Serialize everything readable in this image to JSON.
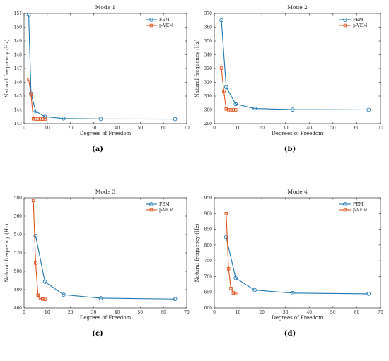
{
  "colors": {
    "fem": "#1f77b4",
    "pvem": "#e0541e"
  },
  "chart_data": [
    {
      "type": "line",
      "title": "Mode 1",
      "xlabel": "Degrees of Freedom",
      "ylabel": "Natural frequency (Hz)",
      "caption": "(a)",
      "xlim": [
        0,
        70
      ],
      "xticks": [
        0,
        10,
        20,
        30,
        40,
        50,
        60,
        70
      ],
      "ylim": [
        143,
        151
      ],
      "yticks": [
        143,
        144,
        145,
        146,
        147,
        148,
        149,
        150,
        151
      ],
      "legend": "top-right",
      "series": [
        {
          "name": "FEM",
          "marker": "circle",
          "x": [
            2,
            3,
            5,
            9,
            17,
            33,
            65
          ],
          "y": [
            150.9,
            145.2,
            143.9,
            143.5,
            143.37,
            143.34,
            143.33
          ]
        },
        {
          "name": "p-VEM",
          "marker": "square",
          "x": [
            2,
            3,
            4,
            5,
            6,
            7,
            8,
            9
          ],
          "y": [
            146.2,
            145.1,
            143.35,
            143.33,
            143.33,
            143.33,
            143.33,
            143.33
          ]
        }
      ]
    },
    {
      "type": "line",
      "title": "Mode 2",
      "xlabel": "Degrees of Freedom",
      "ylabel": "Natural frequency (Hz)",
      "caption": "(b)",
      "xlim": [
        0,
        70
      ],
      "xticks": [
        0,
        10,
        20,
        30,
        40,
        50,
        60,
        70
      ],
      "ylim": [
        290,
        370
      ],
      "yticks": [
        290,
        300,
        310,
        320,
        330,
        340,
        350,
        360,
        370
      ],
      "legend": "top-right",
      "series": [
        {
          "name": "FEM",
          "marker": "circle",
          "x": [
            3,
            5,
            9,
            17,
            33,
            65
          ],
          "y": [
            365,
            316.5,
            304.2,
            301,
            300.2,
            300
          ]
        },
        {
          "name": "p-VEM",
          "marker": "square",
          "x": [
            3,
            4,
            5,
            6,
            7,
            8,
            9
          ],
          "y": [
            330.3,
            313.5,
            300.6,
            300.1,
            300,
            300,
            300
          ]
        }
      ]
    },
    {
      "type": "line",
      "title": "Mode 3",
      "xlabel": "Degrees of Freedom",
      "ylabel": "Natural frequency (Hz)",
      "caption": "(c)",
      "xlim": [
        0,
        70
      ],
      "xticks": [
        0,
        10,
        20,
        30,
        40,
        50,
        60,
        70
      ],
      "ylim": [
        460,
        580
      ],
      "yticks": [
        460,
        480,
        500,
        520,
        540,
        560,
        580
      ],
      "legend": "top-right",
      "series": [
        {
          "name": "FEM",
          "marker": "circle",
          "x": [
            5,
            9,
            17,
            33,
            65
          ],
          "y": [
            538.5,
            488.5,
            474.5,
            470.8,
            469.8
          ]
        },
        {
          "name": "p-VEM",
          "marker": "square",
          "x": [
            4,
            5,
            6,
            7,
            8,
            9
          ],
          "y": [
            577,
            509,
            474,
            470.5,
            469.8,
            469.5
          ]
        }
      ]
    },
    {
      "type": "line",
      "title": "Mode 4",
      "xlabel": "Degrees of Freedom",
      "ylabel": "Natural frequency (Hz)",
      "caption": "(d)",
      "xlim": [
        0,
        70
      ],
      "xticks": [
        0,
        10,
        20,
        30,
        40,
        50,
        60,
        70
      ],
      "ylim": [
        600,
        950
      ],
      "yticks": [
        600,
        650,
        700,
        750,
        800,
        850,
        900,
        950
      ],
      "legend": "top-right",
      "series": [
        {
          "name": "FEM",
          "marker": "circle",
          "x": [
            5,
            9,
            17,
            33,
            65
          ],
          "y": [
            825,
            695,
            657,
            647.5,
            645
          ]
        },
        {
          "name": "p-VEM",
          "marker": "square",
          "x": [
            5,
            6,
            7,
            8,
            9
          ],
          "y": [
            900,
            725,
            662,
            648,
            645.5
          ]
        }
      ]
    }
  ]
}
